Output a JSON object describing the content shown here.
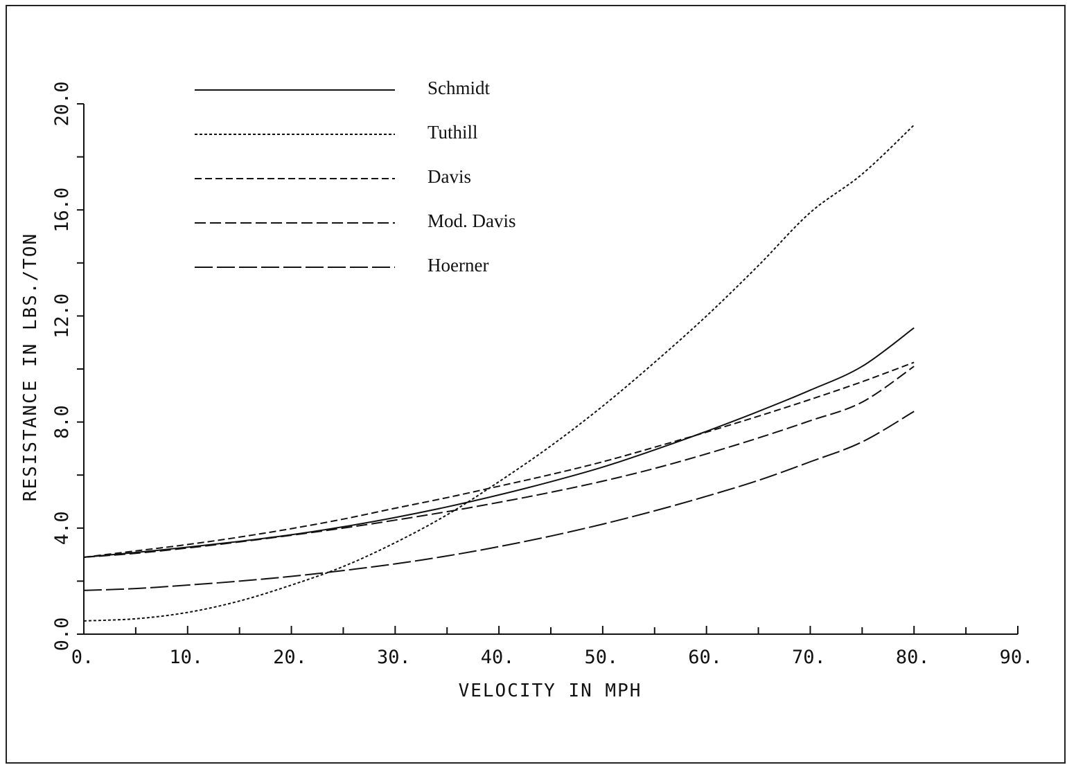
{
  "chart_data": {
    "type": "line",
    "title": "",
    "xlabel": "VELOCITY IN MPH",
    "ylabel": "RESISTANCE IN LBS./TON",
    "xlim": [
      0,
      90
    ],
    "ylim": [
      0,
      20
    ],
    "x_ticks": [
      0,
      10,
      20,
      30,
      40,
      50,
      60,
      70,
      80,
      90
    ],
    "x_tick_labels": [
      "0.",
      "10.",
      "20.",
      "30.",
      "40.",
      "50.",
      "60.",
      "70.",
      "80.",
      "90."
    ],
    "y_ticks": [
      0,
      4,
      8,
      12,
      16,
      20
    ],
    "y_tick_labels": [
      "0.0",
      "4.0",
      "8.0",
      "12.0",
      "16.0",
      "20.0"
    ],
    "grid": false,
    "legend_position": "top-left",
    "x": [
      0,
      5,
      10,
      15,
      20,
      25,
      30,
      35,
      40,
      45,
      50,
      55,
      60,
      65,
      70,
      75,
      80
    ],
    "series": [
      {
        "name": "Schmidt",
        "dash": "solid",
        "values": [
          2.9,
          3.08,
          3.28,
          3.5,
          3.75,
          4.05,
          4.4,
          4.8,
          5.25,
          5.75,
          6.3,
          6.95,
          7.65,
          8.4,
          9.2,
          10.1,
          11.55
        ]
      },
      {
        "name": "Tuthill",
        "dash": "dotted",
        "values": [
          0.5,
          0.58,
          0.82,
          1.25,
          1.85,
          2.55,
          3.45,
          4.5,
          5.75,
          7.1,
          8.6,
          10.25,
          12.0,
          13.9,
          15.9,
          17.35,
          19.2
        ]
      },
      {
        "name": "Davis",
        "dash": "short-dash",
        "values": [
          2.9,
          3.14,
          3.38,
          3.66,
          3.98,
          4.34,
          4.75,
          5.15,
          5.58,
          6.02,
          6.5,
          7.05,
          7.62,
          8.22,
          8.85,
          9.52,
          10.25
        ]
      },
      {
        "name": "Mod. Davis",
        "dash": "medium-dash",
        "values": [
          2.9,
          3.05,
          3.25,
          3.48,
          3.73,
          4.0,
          4.3,
          4.62,
          4.97,
          5.35,
          5.77,
          6.25,
          6.8,
          7.4,
          8.05,
          8.75,
          10.1
        ]
      },
      {
        "name": "Hoerner",
        "dash": "long-dash",
        "values": [
          1.65,
          1.72,
          1.85,
          2.0,
          2.18,
          2.4,
          2.65,
          2.95,
          3.3,
          3.7,
          4.15,
          4.65,
          5.2,
          5.8,
          6.5,
          7.25,
          8.4
        ]
      }
    ]
  }
}
